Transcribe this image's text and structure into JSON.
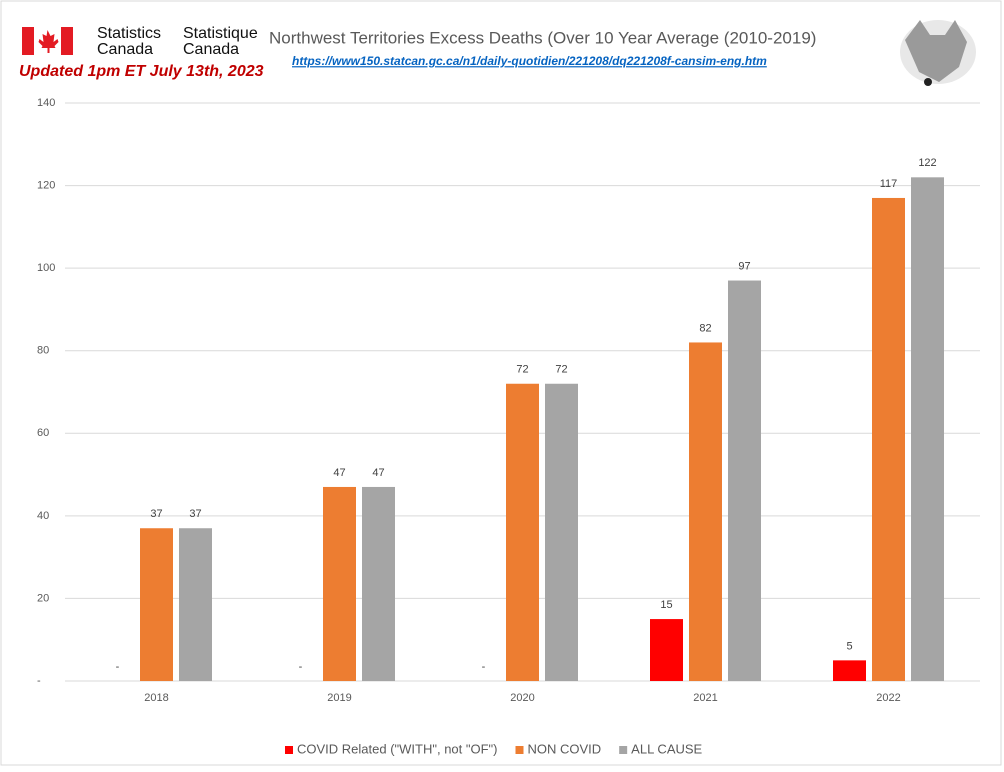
{
  "chart_data": {
    "type": "bar",
    "title": "Northwest Territories Excess Deaths (Over 10 Year Average (2010-2019)",
    "subtitle": "https://www150.statcan.gc.ca/n1/daily-quotidien/221208/dq221208f-cansim-eng.htm",
    "annotation": "Updated 1pm ET July 13th, 2023",
    "logo_text": [
      "Statistics",
      "Canada",
      "Statistique",
      "Canada"
    ],
    "categories": [
      "2018",
      "2019",
      "2020",
      "2021",
      "2022"
    ],
    "series": [
      {
        "name": "COVID Related (\"WITH\", not \"OF\")",
        "color": "#ff0000",
        "values": [
          0,
          0,
          0,
          15,
          5
        ],
        "value_labels": [
          "-",
          "-",
          "-",
          "15",
          "5"
        ]
      },
      {
        "name": "NON COVID",
        "color": "#ed7d31",
        "values": [
          37,
          47,
          72,
          82,
          117
        ]
      },
      {
        "name": "ALL CAUSE",
        "color": "#a5a5a5",
        "values": [
          37,
          47,
          72,
          97,
          122
        ]
      }
    ],
    "ylim": [
      0,
      140
    ],
    "yticks": [
      {
        "value": 0,
        "label": "-"
      },
      20,
      40,
      60,
      80,
      100,
      120,
      140
    ],
    "grid": true,
    "legend": "bottom"
  }
}
